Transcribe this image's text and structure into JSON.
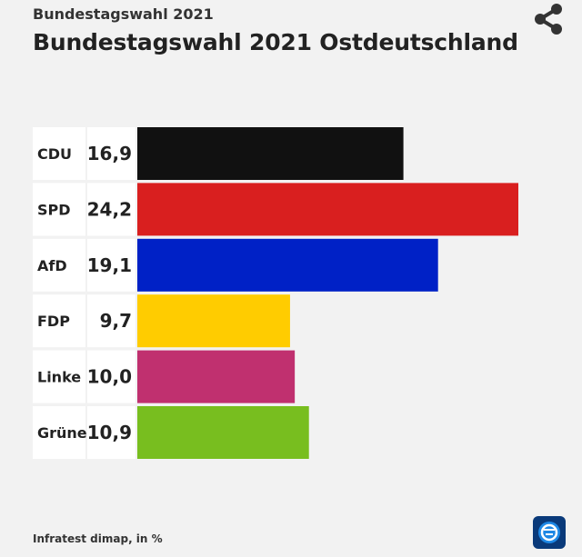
{
  "header": {
    "kicker": "Bundestagswahl 2021",
    "title": "Bundestagswahl 2021 Ostdeutschland"
  },
  "icons": {
    "share": "share-icon",
    "logo": "tagesschau-logo"
  },
  "footer": {
    "source": "Infratest dimap, in %"
  },
  "chart_data": {
    "type": "bar",
    "orientation": "horizontal",
    "categories": [
      "CDU",
      "SPD",
      "AfD",
      "FDP",
      "Linke",
      "Grüne"
    ],
    "values": [
      16.9,
      24.2,
      19.1,
      9.7,
      10.0,
      10.9
    ],
    "value_labels": [
      "16,9",
      "24,2",
      "19,1",
      "9,7",
      "10,0",
      "10,9"
    ],
    "colors": [
      "#111111",
      "#d91f1f",
      "#0021c6",
      "#ffcc00",
      "#c0306f",
      "#78be1f"
    ],
    "unit": "%",
    "xlim": [
      0,
      24.2
    ],
    "grid": false,
    "legend": "none"
  }
}
